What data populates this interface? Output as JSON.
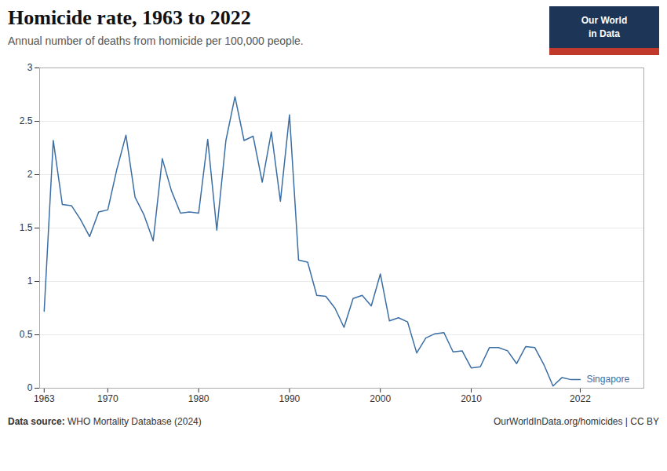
{
  "chart_data": {
    "type": "line",
    "title": "Homicide rate, 1963 to 2022",
    "subtitle": "Annual number of deaths from homicide per 100,000 people.",
    "caption_bold": "Data source:",
    "caption": "WHO Mortality Database (2024)",
    "url": "OurWorldInData.org/homicides | CC BY",
    "logo": {
      "text": [
        "Our World",
        "in Data"
      ],
      "color": "#1d3557",
      "stripe_color": "#c0392b"
    },
    "x": [
      1963,
      1964,
      1965,
      1966,
      1967,
      1968,
      1969,
      1970,
      1971,
      1972,
      1973,
      1974,
      1975,
      1976,
      1977,
      1978,
      1979,
      1980,
      1981,
      1982,
      1983,
      1984,
      1985,
      1986,
      1987,
      1988,
      1989,
      1990,
      1991,
      1992,
      1993,
      1994,
      1995,
      1996,
      1997,
      1998,
      1999,
      2000,
      2001,
      2002,
      2003,
      2004,
      2005,
      2006,
      2007,
      2008,
      2009,
      2010,
      2011,
      2012,
      2013,
      2014,
      2015,
      2016,
      2017,
      2018,
      2019,
      2020,
      2021,
      2022
    ],
    "series": [
      {
        "name": "Singapore",
        "color": "#3a6ea5",
        "values": [
          0.72,
          2.32,
          1.72,
          1.71,
          1.58,
          1.42,
          1.65,
          1.67,
          2.05,
          2.37,
          1.79,
          1.62,
          1.38,
          2.15,
          1.85,
          1.64,
          1.65,
          1.64,
          2.33,
          1.48,
          2.32,
          2.73,
          2.32,
          2.36,
          1.93,
          2.4,
          1.75,
          2.56,
          1.2,
          1.18,
          0.87,
          0.86,
          0.75,
          0.57,
          0.84,
          0.87,
          0.77,
          1.07,
          0.63,
          0.66,
          0.62,
          0.33,
          0.47,
          0.51,
          0.52,
          0.34,
          0.35,
          0.19,
          0.2,
          0.38,
          0.38,
          0.35,
          0.23,
          0.39,
          0.38,
          0.22,
          0.02,
          0.1,
          0.08,
          0.08
        ]
      }
    ],
    "xlim": [
      1962.5,
      2029
    ],
    "xticks": [
      1963,
      1970,
      1980,
      1990,
      2000,
      2010,
      2022
    ],
    "ylim": [
      0,
      3
    ],
    "yticks": [
      0,
      0.5,
      1,
      1.5,
      2,
      2.5,
      3
    ],
    "grid": true
  }
}
